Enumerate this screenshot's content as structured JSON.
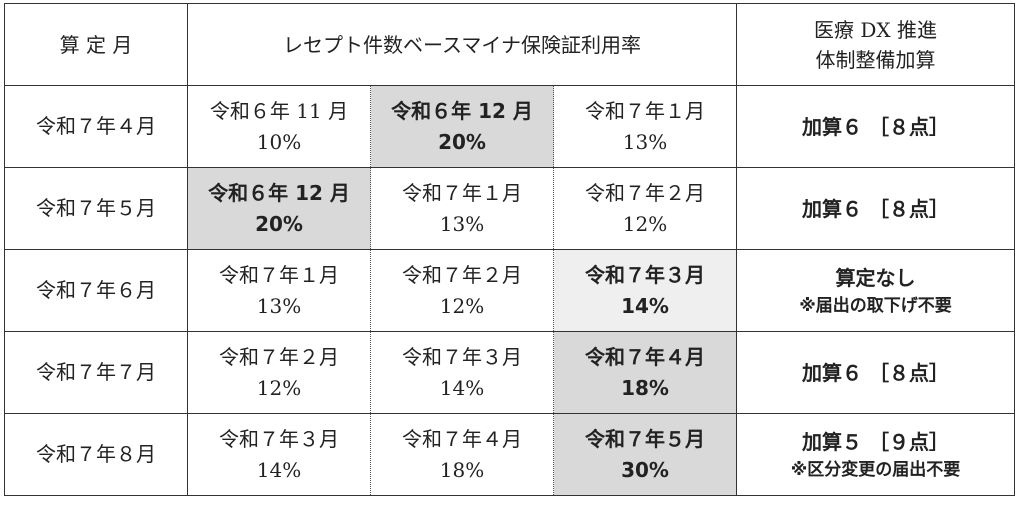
{
  "header": {
    "col_month": "算 定 月",
    "col_rates": "レセプト件数ベースマイナ保険証利用率",
    "col_addition_line1": "医療 DX 推進",
    "col_addition_line2": "体制整備加算"
  },
  "rows": [
    {
      "month": "令和７年４月",
      "cells": [
        {
          "period": "令和６年 11 月",
          "rate": "10%"
        },
        {
          "period": "令和６年 12 月",
          "rate": "20%"
        },
        {
          "period": "令和７年１月",
          "rate": "13%"
        }
      ],
      "result": "加算６ ［８点］",
      "note": ""
    },
    {
      "month": "令和７年５月",
      "cells": [
        {
          "period": "令和６年 12 月",
          "rate": "20%"
        },
        {
          "period": "令和７年１月",
          "rate": "13%"
        },
        {
          "period": "令和７年２月",
          "rate": "12%"
        }
      ],
      "result": "加算６ ［８点］",
      "note": ""
    },
    {
      "month": "令和７年６月",
      "cells": [
        {
          "period": "令和７年１月",
          "rate": "13%"
        },
        {
          "period": "令和７年２月",
          "rate": "12%"
        },
        {
          "period": "令和７年３月",
          "rate": "14%"
        }
      ],
      "result": "算定なし",
      "note": "※届出の取下げ不要"
    },
    {
      "month": "令和７年７月",
      "cells": [
        {
          "period": "令和７年２月",
          "rate": "12%"
        },
        {
          "period": "令和７年３月",
          "rate": "14%"
        },
        {
          "period": "令和７年４月",
          "rate": "18%"
        }
      ],
      "result": "加算６ ［８点］",
      "note": ""
    },
    {
      "month": "令和７年８月",
      "cells": [
        {
          "period": "令和７年３月",
          "rate": "14%"
        },
        {
          "period": "令和７年４月",
          "rate": "18%"
        },
        {
          "period": "令和７年５月",
          "rate": "30%"
        }
      ],
      "result": "加算５ ［９点］",
      "note": "※区分変更の届出不要"
    }
  ]
}
